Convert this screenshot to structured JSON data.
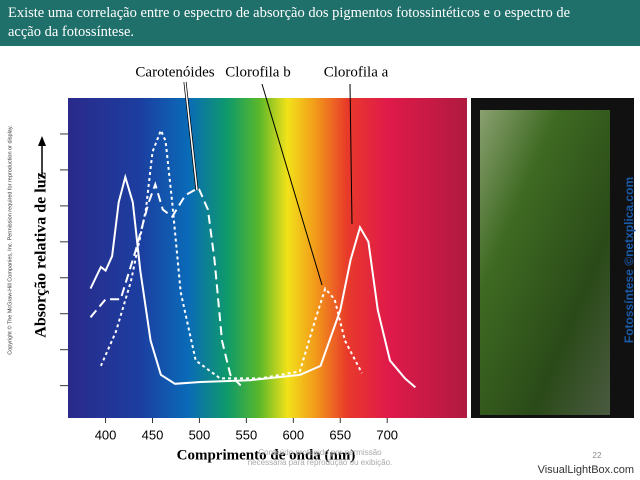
{
  "header": {
    "title": "Existe uma correlação entre o espectro de absorção dos pigmentos fotossintéticos e o espectro de acção da fotossíntese."
  },
  "chart_data": {
    "type": "line",
    "xlabel": "Comprimento de onda (nm)",
    "ylabel": "Absorção relativa de luz",
    "xlim": [
      360,
      785
    ],
    "xticks": [
      400,
      450,
      500,
      550,
      600,
      650,
      700
    ],
    "ylim": [
      -0.9,
      8
    ],
    "yticks": [
      0,
      1,
      2,
      3,
      4,
      5,
      6,
      7
    ],
    "series": [
      {
        "name": "Clorofila a",
        "color": "#ffffff",
        "dash": "solid",
        "x": [
          384,
          395,
          400,
          407,
          414,
          421,
          429,
          437,
          448,
          459,
          474,
          501,
          554,
          607,
          629,
          650,
          661,
          671,
          680,
          690,
          703,
          719,
          730
        ],
        "values": [
          2.7,
          3.3,
          3.2,
          3.6,
          5.1,
          5.8,
          5.1,
          3.2,
          1.25,
          0.3,
          0.05,
          0.1,
          0.15,
          0.3,
          0.55,
          2.1,
          3.5,
          4.4,
          4.0,
          2.1,
          0.7,
          0.2,
          -0.05
        ]
      },
      {
        "name": "Clorofila b",
        "color": "#ffffff",
        "dash": "short",
        "x": [
          395,
          411,
          427,
          443,
          450,
          459,
          464,
          471,
          480,
          496,
          522,
          565,
          607,
          623,
          634,
          644,
          655,
          673
        ],
        "values": [
          0.55,
          1.5,
          2.9,
          4.9,
          6.5,
          7.1,
          6.8,
          5.1,
          2.6,
          0.7,
          0.2,
          0.2,
          0.4,
          1.8,
          2.7,
          2.4,
          1.25,
          0.35
        ]
      },
      {
        "name": "Carotenóides",
        "color": "#ffffff",
        "dash": "long",
        "x": [
          384,
          400,
          416,
          432,
          446,
          453,
          461,
          471,
          485,
          499,
          509,
          516,
          524,
          533,
          544
        ],
        "values": [
          1.9,
          2.4,
          2.4,
          3.75,
          5.1,
          5.6,
          4.9,
          4.7,
          5.3,
          5.5,
          4.9,
          3.5,
          1.25,
          0.3,
          0
        ]
      }
    ]
  },
  "copyright": "Copyright © The McGraw-Hill Companies, Inc. Permission required for reproduction or display.",
  "photo_credit": "Fotossíntese ©netxplica.com",
  "footer": {
    "notice_1": "Conteúdo protegido por permissão",
    "notice_2": "necessária para reprodução ou exibição.",
    "page": "22",
    "watermark": "VisualLightBox.com"
  }
}
